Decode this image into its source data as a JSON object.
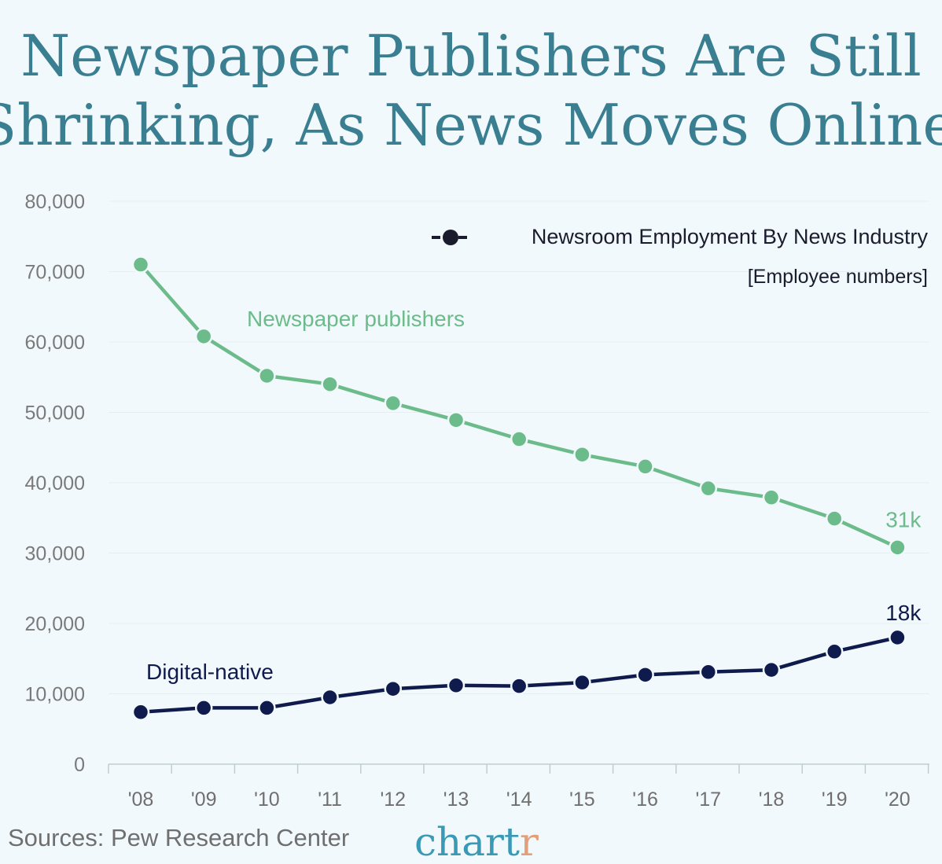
{
  "title_lines": [
    "Newspaper Publishers Are Still",
    "Shrinking, As News Moves Online"
  ],
  "legend": {
    "label": "Newsroom Employment By News Industry",
    "unit": "[Employee numbers]"
  },
  "source": "Sources: Pew Research Center",
  "brand": {
    "main": "chart",
    "accent": "r"
  },
  "colors": {
    "background": "#f2f9fc",
    "title": "#3a7f91",
    "newspaper": "#6cbb8a",
    "digital": "#0f1a4d",
    "axis": "#bfcdd3",
    "brand": "#3a9ab5",
    "brand_accent": "#e2a07a"
  },
  "chart_data": {
    "type": "line",
    "categories": [
      "'08",
      "'09",
      "'10",
      "'11",
      "'12",
      "'13",
      "'14",
      "'15",
      "'16",
      "'17",
      "'18",
      "'19",
      "'20"
    ],
    "yticks": [
      "0",
      "10,000",
      "20,000",
      "30,000",
      "40,000",
      "50,000",
      "60,000",
      "70,000",
      "80,000"
    ],
    "ylim": [
      0,
      80000
    ],
    "grid": true,
    "legend_position": "top-right",
    "series": [
      {
        "name": "Newspaper publishers",
        "values": [
          71000,
          60800,
          55200,
          54000,
          51300,
          48900,
          46200,
          44000,
          42300,
          39200,
          37900,
          34900,
          30800
        ],
        "end_label": "31k"
      },
      {
        "name": "Digital-native",
        "values": [
          7400,
          8000,
          8000,
          9500,
          10700,
          11200,
          11100,
          11600,
          12700,
          13100,
          13400,
          16000,
          18000
        ],
        "end_label": "18k"
      }
    ]
  }
}
